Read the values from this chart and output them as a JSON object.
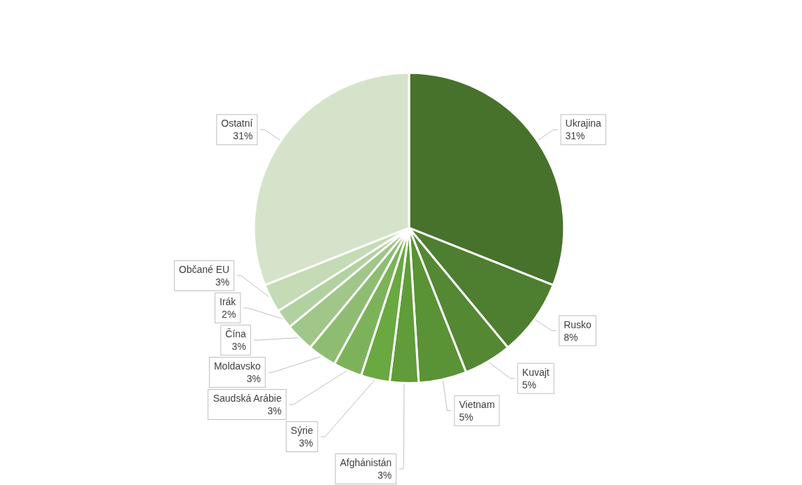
{
  "chart_data": {
    "type": "pie",
    "categories": [
      "Ukrajina",
      "Rusko",
      "Kuvajt",
      "Vietnam",
      "Afghánistán",
      "Sýrie",
      "Saudská Arábie",
      "Moldavsko",
      "Čína",
      "Irák",
      "Občané EU",
      "Ostatní"
    ],
    "values": [
      31,
      8,
      5,
      5,
      3,
      3,
      3,
      3,
      3,
      2,
      3,
      31
    ],
    "value_labels": [
      "31%",
      "8%",
      "5%",
      "5%",
      "3%",
      "3%",
      "3%",
      "3%",
      "3%",
      "2%",
      "3%",
      "31%"
    ],
    "colors": [
      "#47722b",
      "#4e7e2f",
      "#548833",
      "#5a9236",
      "#609c3a",
      "#6aa842",
      "#7cb35a",
      "#8ebd72",
      "#a0c68a",
      "#b2d1a0",
      "#c4dbb5",
      "#d6e3cb"
    ]
  }
}
